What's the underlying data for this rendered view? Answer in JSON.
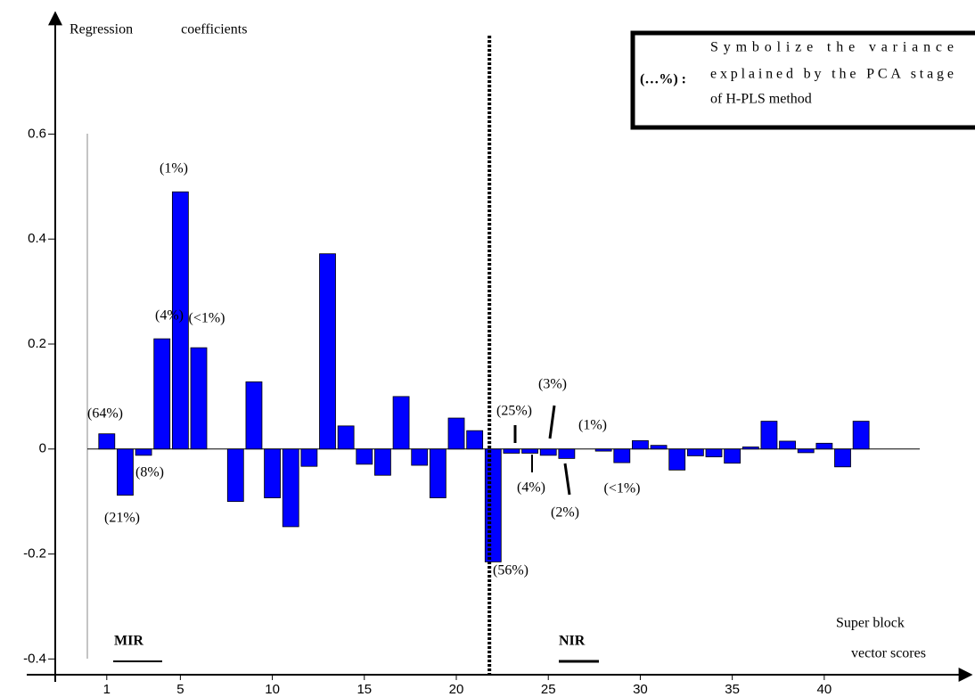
{
  "chart_data": {
    "type": "bar",
    "y_label": "Regression coefficients",
    "x_label": [
      "Super block",
      "vector scores"
    ],
    "x": [
      1,
      2,
      3,
      4,
      5,
      6,
      7,
      8,
      9,
      10,
      11,
      12,
      13,
      14,
      15,
      16,
      17,
      18,
      19,
      20,
      21,
      22,
      23,
      24,
      25,
      26,
      27,
      28,
      29,
      30,
      31,
      32,
      33,
      34,
      35,
      36,
      37,
      38,
      39,
      40,
      41,
      42
    ],
    "values": [
      0.029,
      -0.088,
      -0.012,
      0.21,
      0.49,
      0.193,
      0,
      -0.1,
      0.128,
      -0.093,
      -0.148,
      -0.033,
      0.372,
      0.044,
      -0.029,
      -0.05,
      0.1,
      -0.031,
      -0.093,
      0.059,
      0.035,
      -0.215,
      -0.008,
      -0.008,
      -0.012,
      -0.018,
      0,
      -0.004,
      -0.026,
      0.016,
      0.007,
      -0.04,
      -0.013,
      -0.015,
      -0.027,
      0.004,
      0.053,
      0.015,
      -0.007,
      0.011,
      -0.034,
      0.053
    ],
    "color": "#0000ff",
    "xlim": [
      -1.8,
      48
    ],
    "ylim": [
      -0.43,
      0.83
    ],
    "xticks": [
      1,
      5,
      10,
      15,
      20,
      25,
      30,
      35,
      40
    ],
    "yticks": [
      -0.4,
      -0.2,
      0,
      0.2,
      0.4,
      0.6
    ],
    "divider_x": 21.8,
    "regions": [
      "MIR",
      "NIR"
    ],
    "annotations": [
      "(64%)",
      "(21%)",
      "(8%)",
      "(4%)",
      "(1%)",
      "(<1%)",
      "(56%)",
      "(25%)",
      "(4%)",
      "(3%)",
      "(2%)",
      "(1%)",
      "(<1%)"
    ],
    "note": {
      "symbol": "(…%) :",
      "lines": [
        "Symbolize the variance",
        "explained by the PCA stage",
        "of H-PLS method"
      ]
    }
  }
}
